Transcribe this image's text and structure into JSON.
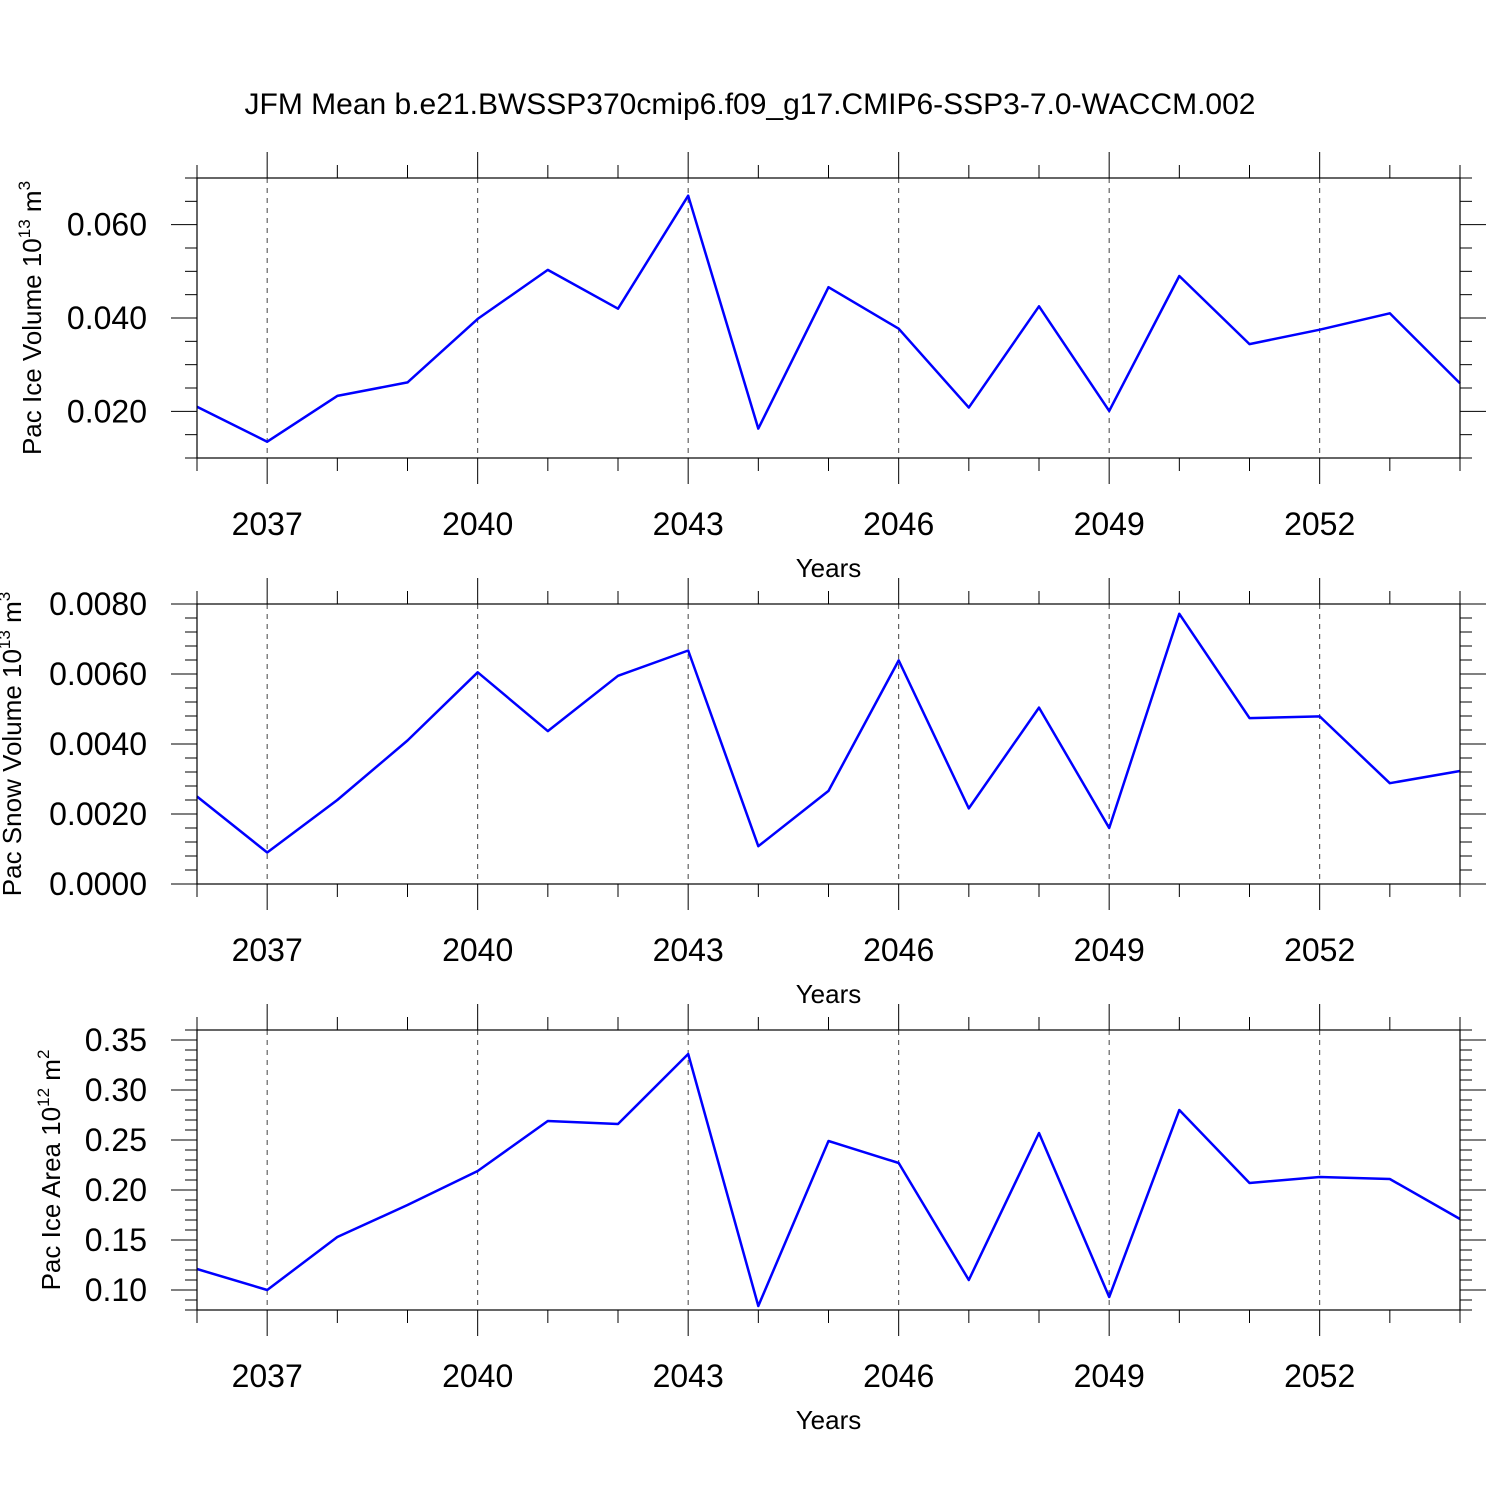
{
  "title": "JFM Mean b.e21.BWSSP370cmip6.f09_g17.CMIP6-SSP3-7.0-WACCM.002",
  "line_color": "#0000ff",
  "chart_data": [
    {
      "type": "line",
      "title": "",
      "xlabel": "Years",
      "ylabel": {
        "text": "Pac Ice Volume 10",
        "exp": "13",
        "unit": " m",
        "unit_exp": "3"
      },
      "xlim": [
        2036,
        2054
      ],
      "ylim": [
        0.01,
        0.07
      ],
      "xticks": [
        2037,
        2040,
        2043,
        2046,
        2049,
        2052
      ],
      "yticks": [
        {
          "value": 0.02,
          "label": "0.020"
        },
        {
          "value": 0.04,
          "label": "0.040"
        },
        {
          "value": 0.06,
          "label": "0.060"
        }
      ],
      "y_minor_step": 0.005,
      "grid": "x dashed at major ticks",
      "x": [
        2036,
        2037,
        2038,
        2039,
        2040,
        2041,
        2042,
        2043,
        2044,
        2045,
        2046,
        2047,
        2048,
        2049,
        2050,
        2051,
        2052,
        2053,
        2054
      ],
      "series": [
        {
          "values": [
            0.021,
            0.0135,
            0.0233,
            0.0262,
            0.0398,
            0.0503,
            0.042,
            0.0662,
            0.0163,
            0.0466,
            0.0377,
            0.0208,
            0.0425,
            0.0201,
            0.049,
            0.0344,
            0.0375,
            0.041,
            0.026
          ]
        }
      ]
    },
    {
      "type": "line",
      "title": "",
      "xlabel": "Years",
      "ylabel": {
        "text": "Pac Snow Volume 10",
        "exp": "13",
        "unit": " m",
        "unit_exp": "3"
      },
      "xlim": [
        2036,
        2054
      ],
      "ylim": [
        0.0,
        0.008
      ],
      "xticks": [
        2037,
        2040,
        2043,
        2046,
        2049,
        2052
      ],
      "yticks": [
        {
          "value": 0.0,
          "label": "0.0000"
        },
        {
          "value": 0.002,
          "label": "0.0020"
        },
        {
          "value": 0.004,
          "label": "0.0040"
        },
        {
          "value": 0.006,
          "label": "0.0060"
        },
        {
          "value": 0.008,
          "label": "0.0080"
        }
      ],
      "y_minor_step": 0.0004,
      "grid": "x dashed at major ticks",
      "x": [
        2036,
        2037,
        2038,
        2039,
        2040,
        2041,
        2042,
        2043,
        2044,
        2045,
        2046,
        2047,
        2048,
        2049,
        2050,
        2051,
        2052,
        2053,
        2054
      ],
      "series": [
        {
          "values": [
            0.0025,
            0.0009,
            0.0024,
            0.0041,
            0.00605,
            0.00437,
            0.00595,
            0.00667,
            0.00108,
            0.00266,
            0.00639,
            0.00216,
            0.00504,
            0.0016,
            0.00772,
            0.00474,
            0.00479,
            0.00288,
            0.00323
          ]
        }
      ]
    },
    {
      "type": "line",
      "title": "",
      "xlabel": "Years",
      "ylabel": {
        "text": "Pac Ice Area 10",
        "exp": "12",
        "unit": " m",
        "unit_exp": "2"
      },
      "xlim": [
        2036,
        2054
      ],
      "ylim": [
        0.08,
        0.36
      ],
      "xticks": [
        2037,
        2040,
        2043,
        2046,
        2049,
        2052
      ],
      "yticks": [
        {
          "value": 0.1,
          "label": "0.10"
        },
        {
          "value": 0.15,
          "label": "0.15"
        },
        {
          "value": 0.2,
          "label": "0.20"
        },
        {
          "value": 0.25,
          "label": "0.25"
        },
        {
          "value": 0.3,
          "label": "0.30"
        },
        {
          "value": 0.35,
          "label": "0.35"
        }
      ],
      "y_minor_step": 0.01,
      "grid": "x dashed at major ticks",
      "x": [
        2036,
        2037,
        2038,
        2039,
        2040,
        2041,
        2042,
        2043,
        2044,
        2045,
        2046,
        2047,
        2048,
        2049,
        2050,
        2051,
        2052,
        2053,
        2054
      ],
      "series": [
        {
          "values": [
            0.121,
            0.1,
            0.153,
            0.185,
            0.219,
            0.269,
            0.266,
            0.336,
            0.084,
            0.249,
            0.227,
            0.11,
            0.257,
            0.093,
            0.28,
            0.207,
            0.213,
            0.211,
            0.171
          ]
        }
      ]
    }
  ]
}
